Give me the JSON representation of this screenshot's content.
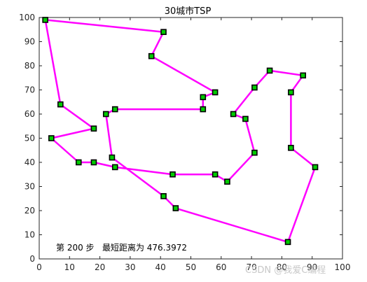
{
  "chart_data": {
    "type": "line",
    "title": "30城市TSP",
    "xlabel": "",
    "ylabel": "",
    "xlim": [
      0,
      100
    ],
    "ylim": [
      0,
      100
    ],
    "xticks": [
      0,
      10,
      20,
      30,
      40,
      50,
      60,
      70,
      80,
      90,
      100
    ],
    "yticks": [
      0,
      10,
      20,
      30,
      40,
      50,
      60,
      70,
      80,
      90,
      100
    ],
    "grid": false,
    "annotation": "第 200 步   最短距离为 476.3972",
    "series": [
      {
        "marker": "square",
        "line_color": "#ff00ff",
        "marker_face": "#00cc00",
        "marker_edge": "#000000",
        "x": [
          2,
          41,
          37,
          58,
          54,
          54,
          25,
          22,
          24,
          41,
          45,
          82,
          91,
          83,
          83,
          87,
          76,
          71,
          64,
          68,
          71,
          62,
          58,
          44,
          25,
          18,
          13,
          4,
          18,
          7,
          2
        ],
        "y": [
          99,
          94,
          84,
          69,
          67,
          62,
          62,
          60,
          42,
          26,
          21,
          7,
          38,
          46,
          69,
          76,
          78,
          71,
          60,
          58,
          44,
          32,
          35,
          35,
          38,
          40,
          40,
          50,
          54,
          64,
          99
        ]
      }
    ]
  },
  "watermark": "CSDN @我爱C编程"
}
